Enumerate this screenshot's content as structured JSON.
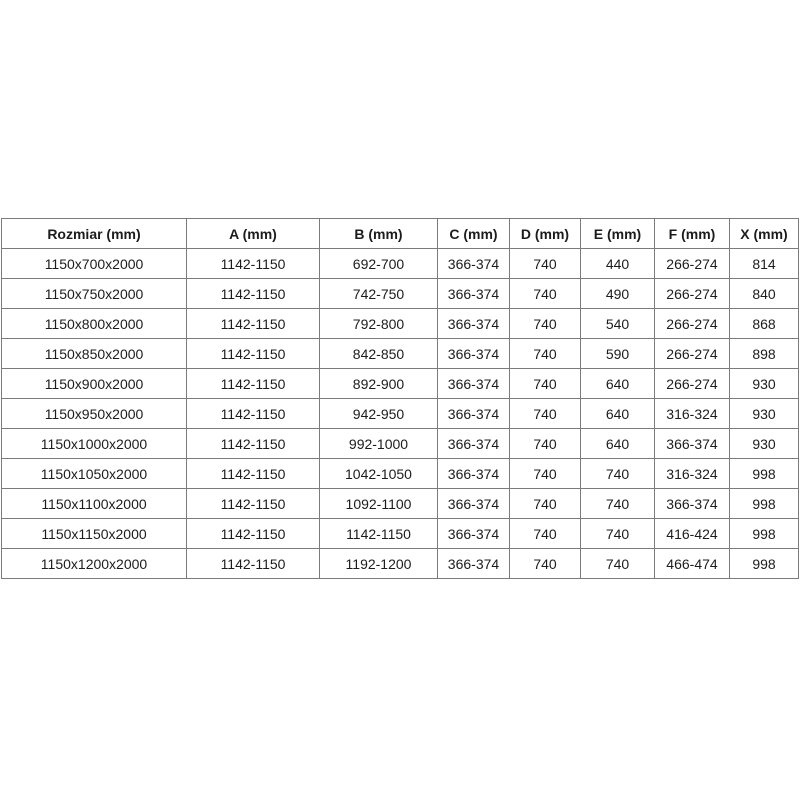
{
  "colors": {
    "background": "#ffffff",
    "grid_border": "#7b7b7b",
    "text": "#1c1c1c"
  },
  "table": {
    "headers": [
      "Rozmiar (mm)",
      "A (mm)",
      "B (mm)",
      "C (mm)",
      "D (mm)",
      "E (mm)",
      "F (mm)",
      "X (mm)"
    ],
    "rows": [
      [
        "1150x700x2000",
        "1142-1150",
        "692-700",
        "366-374",
        "740",
        "440",
        "266-274",
        "814"
      ],
      [
        "1150x750x2000",
        "1142-1150",
        "742-750",
        "366-374",
        "740",
        "490",
        "266-274",
        "840"
      ],
      [
        "1150x800x2000",
        "1142-1150",
        "792-800",
        "366-374",
        "740",
        "540",
        "266-274",
        "868"
      ],
      [
        "1150x850x2000",
        "1142-1150",
        "842-850",
        "366-374",
        "740",
        "590",
        "266-274",
        "898"
      ],
      [
        "1150x900x2000",
        "1142-1150",
        "892-900",
        "366-374",
        "740",
        "640",
        "266-274",
        "930"
      ],
      [
        "1150x950x2000",
        "1142-1150",
        "942-950",
        "366-374",
        "740",
        "640",
        "316-324",
        "930"
      ],
      [
        "1150x1000x2000",
        "1142-1150",
        "992-1000",
        "366-374",
        "740",
        "640",
        "366-374",
        "930"
      ],
      [
        "1150x1050x2000",
        "1142-1150",
        "1042-1050",
        "366-374",
        "740",
        "740",
        "316-324",
        "998"
      ],
      [
        "1150x1100x2000",
        "1142-1150",
        "1092-1100",
        "366-374",
        "740",
        "740",
        "366-374",
        "998"
      ],
      [
        "1150x1150x2000",
        "1142-1150",
        "1142-1150",
        "366-374",
        "740",
        "740",
        "416-424",
        "998"
      ],
      [
        "1150x1200x2000",
        "1142-1150",
        "1192-1200",
        "366-374",
        "740",
        "740",
        "466-474",
        "998"
      ]
    ]
  },
  "chart_data": {
    "type": "table",
    "title": "",
    "columns": [
      "Rozmiar (mm)",
      "A (mm)",
      "B (mm)",
      "C (mm)",
      "D (mm)",
      "E (mm)",
      "F (mm)",
      "X (mm)"
    ],
    "rows": [
      [
        "1150x700x2000",
        "1142-1150",
        "692-700",
        "366-374",
        "740",
        "440",
        "266-274",
        "814"
      ],
      [
        "1150x750x2000",
        "1142-1150",
        "742-750",
        "366-374",
        "740",
        "490",
        "266-274",
        "840"
      ],
      [
        "1150x800x2000",
        "1142-1150",
        "792-800",
        "366-374",
        "740",
        "540",
        "266-274",
        "868"
      ],
      [
        "1150x850x2000",
        "1142-1150",
        "842-850",
        "366-374",
        "740",
        "590",
        "266-274",
        "898"
      ],
      [
        "1150x900x2000",
        "1142-1150",
        "892-900",
        "366-374",
        "740",
        "640",
        "266-274",
        "930"
      ],
      [
        "1150x950x2000",
        "1142-1150",
        "942-950",
        "366-374",
        "740",
        "640",
        "316-324",
        "930"
      ],
      [
        "1150x1000x2000",
        "1142-1150",
        "992-1000",
        "366-374",
        "740",
        "640",
        "366-374",
        "930"
      ],
      [
        "1150x1050x2000",
        "1142-1150",
        "1042-1050",
        "366-374",
        "740",
        "740",
        "316-324",
        "998"
      ],
      [
        "1150x1100x2000",
        "1142-1150",
        "1092-1100",
        "366-374",
        "740",
        "740",
        "366-374",
        "998"
      ],
      [
        "1150x1150x2000",
        "1142-1150",
        "1142-1150",
        "366-374",
        "740",
        "740",
        "416-424",
        "998"
      ],
      [
        "1150x1200x2000",
        "1142-1150",
        "1192-1200",
        "366-374",
        "740",
        "740",
        "466-474",
        "998"
      ]
    ]
  }
}
